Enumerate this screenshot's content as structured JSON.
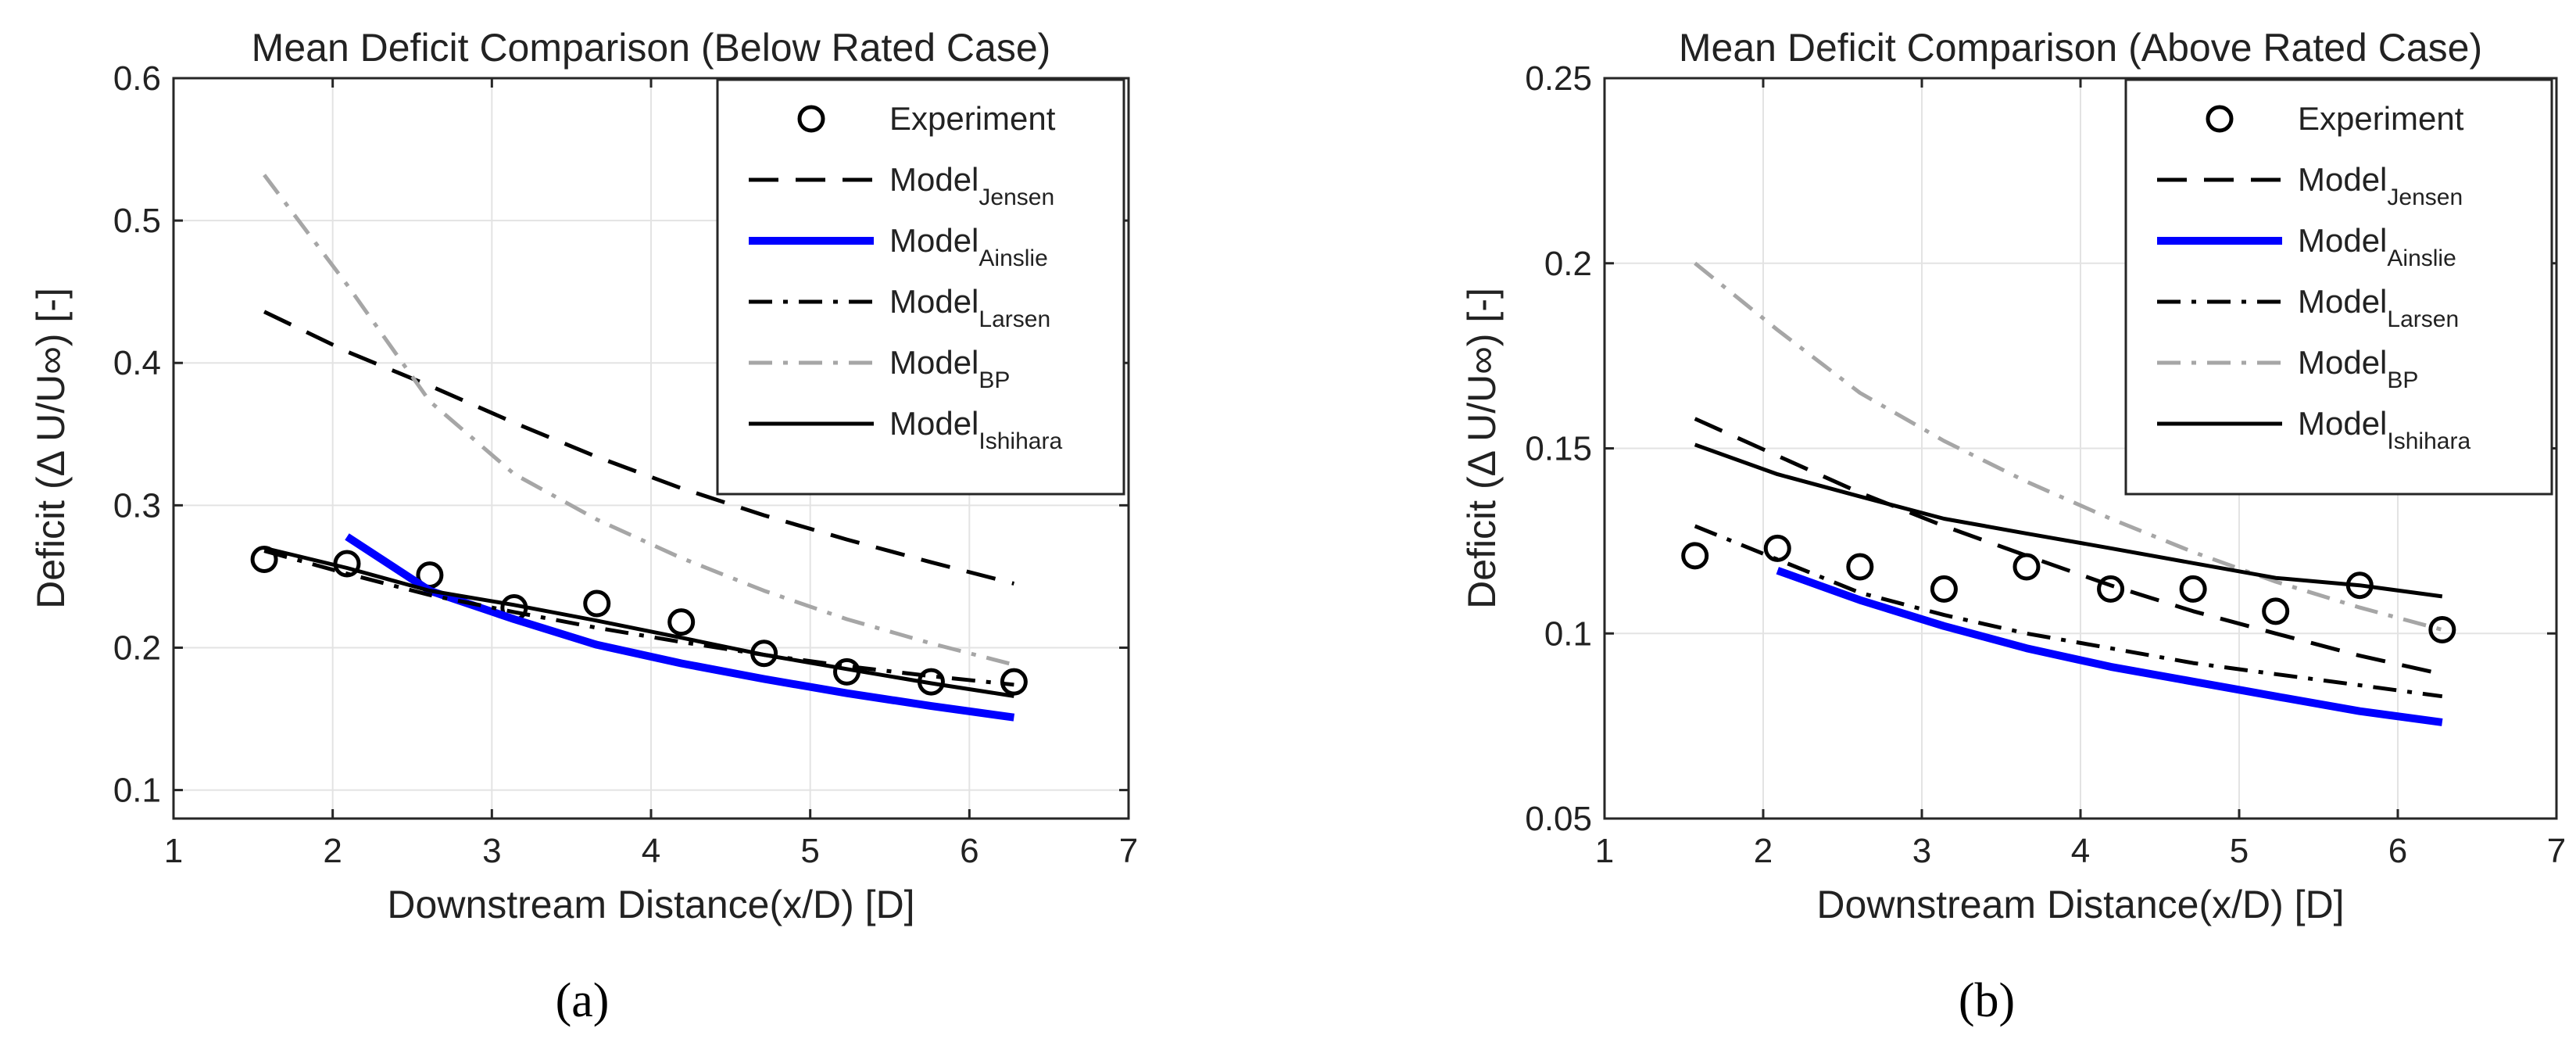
{
  "chart_data": [
    {
      "panel_label": "(a)",
      "type": "line",
      "title": "Mean Deficit Comparison (Below Rated Case)",
      "xlabel": "Downstream Distance(x/D) [D]",
      "ylabel": "Deficit (Δ U/U∞) [-]",
      "xlim": [
        1,
        7
      ],
      "ylim": [
        0.08,
        0.6
      ],
      "xticks": [
        1,
        2,
        3,
        4,
        5,
        6,
        7
      ],
      "xtick_labels": [
        "1",
        "2",
        "3",
        "4",
        "5",
        "6",
        "7"
      ],
      "yticks": [
        0.1,
        0.2,
        0.3,
        0.4,
        0.5,
        0.6
      ],
      "ytick_labels": [
        "0.1",
        "0.2",
        "0.3",
        "0.4",
        "0.5",
        "0.6"
      ],
      "grid": true,
      "legend_position": "top-right",
      "series": [
        {
          "name": "Experiment",
          "legend_main": "Experiment",
          "legend_sub": "",
          "style": "markers",
          "color": "#000000",
          "x": [
            1.57,
            2.09,
            2.61,
            3.14,
            3.66,
            4.19,
            4.71,
            5.23,
            5.76,
            6.28
          ],
          "y": [
            0.262,
            0.259,
            0.251,
            0.228,
            0.231,
            0.218,
            0.196,
            0.183,
            0.176,
            0.176
          ]
        },
        {
          "name": "Model Jensen",
          "legend_main": "Model",
          "legend_sub": "Jensen",
          "style": "dashed",
          "color": "#000000",
          "x": [
            1.57,
            2.09,
            2.61,
            3.14,
            3.66,
            4.19,
            4.71,
            5.23,
            5.76,
            6.28
          ],
          "y": [
            0.436,
            0.408,
            0.384,
            0.358,
            0.334,
            0.312,
            0.293,
            0.276,
            0.26,
            0.245
          ]
        },
        {
          "name": "Model Ainslie",
          "legend_main": "Model",
          "legend_sub": "Ainslie",
          "style": "solid-thick",
          "color": "#0000ff",
          "x": [
            2.09,
            2.61,
            3.14,
            3.66,
            4.19,
            4.71,
            5.23,
            5.76,
            6.28
          ],
          "y": [
            0.278,
            0.24,
            0.22,
            0.202,
            0.189,
            0.178,
            0.168,
            0.159,
            0.151
          ]
        },
        {
          "name": "Model Larsen",
          "legend_main": "Model",
          "legend_sub": "Larsen",
          "style": "dashdot",
          "color": "#000000",
          "x": [
            1.57,
            2.09,
            2.61,
            3.14,
            3.66,
            4.19,
            4.71,
            5.23,
            5.76,
            6.28
          ],
          "y": [
            0.268,
            0.252,
            0.237,
            0.225,
            0.214,
            0.204,
            0.195,
            0.187,
            0.18,
            0.174
          ]
        },
        {
          "name": "Model BP",
          "legend_main": "Model",
          "legend_sub": "BP",
          "style": "dashdot",
          "color": "#a6a6a6",
          "x": [
            1.57,
            2.09,
            2.61,
            3.14,
            3.66,
            4.19,
            4.71,
            5.23,
            5.76,
            6.28
          ],
          "y": [
            0.532,
            0.455,
            0.373,
            0.322,
            0.29,
            0.263,
            0.24,
            0.22,
            0.203,
            0.188
          ]
        },
        {
          "name": "Model Ishihara",
          "legend_main": "Model",
          "legend_sub": "Ishihara",
          "style": "solid",
          "color": "#000000",
          "x": [
            1.57,
            2.09,
            2.61,
            3.14,
            3.66,
            4.19,
            4.71,
            5.23,
            5.76,
            6.28
          ],
          "y": [
            0.27,
            0.256,
            0.24,
            0.23,
            0.219,
            0.207,
            0.195,
            0.185,
            0.175,
            0.166
          ]
        }
      ]
    },
    {
      "panel_label": "(b)",
      "type": "line",
      "title": "Mean Deficit Comparison (Above Rated Case)",
      "xlabel": "Downstream Distance(x/D) [D]",
      "ylabel": "Deficit (Δ U/U∞) [-]",
      "xlim": [
        1,
        7
      ],
      "ylim": [
        0.05,
        0.25
      ],
      "xticks": [
        1,
        2,
        3,
        4,
        5,
        6,
        7
      ],
      "xtick_labels": [
        "1",
        "2",
        "3",
        "4",
        "5",
        "6",
        "7"
      ],
      "yticks": [
        0.05,
        0.1,
        0.15,
        0.2,
        0.25
      ],
      "ytick_labels": [
        "0.05",
        "0.1",
        "0.15",
        "0.2",
        "0.25"
      ],
      "grid": true,
      "legend_position": "top-right",
      "series": [
        {
          "name": "Experiment",
          "legend_main": "Experiment",
          "legend_sub": "",
          "style": "markers",
          "color": "#000000",
          "x": [
            1.57,
            2.09,
            2.61,
            3.14,
            3.66,
            4.19,
            4.71,
            5.23,
            5.76,
            6.28
          ],
          "y": [
            0.121,
            0.123,
            0.118,
            0.112,
            0.118,
            0.112,
            0.112,
            0.106,
            0.113,
            0.101
          ]
        },
        {
          "name": "Model Jensen",
          "legend_main": "Model",
          "legend_sub": "Jensen",
          "style": "dashed",
          "color": "#000000",
          "x": [
            1.57,
            2.09,
            2.61,
            3.14,
            3.66,
            4.19,
            4.71,
            5.23,
            5.76,
            6.28
          ],
          "y": [
            0.158,
            0.148,
            0.138,
            0.129,
            0.121,
            0.113,
            0.106,
            0.1,
            0.094,
            0.089
          ]
        },
        {
          "name": "Model Ainslie",
          "legend_main": "Model",
          "legend_sub": "Ainslie",
          "style": "solid-thick",
          "color": "#0000ff",
          "x": [
            2.09,
            2.61,
            3.14,
            3.66,
            4.19,
            4.71,
            5.23,
            5.76,
            6.28
          ],
          "y": [
            0.117,
            0.109,
            0.102,
            0.096,
            0.091,
            0.087,
            0.083,
            0.079,
            0.076
          ]
        },
        {
          "name": "Model Larsen",
          "legend_main": "Model",
          "legend_sub": "Larsen",
          "style": "dashdot",
          "color": "#000000",
          "x": [
            1.57,
            2.09,
            2.61,
            3.14,
            3.66,
            4.19,
            4.71,
            5.23,
            5.76,
            6.28
          ],
          "y": [
            0.129,
            0.12,
            0.111,
            0.105,
            0.1,
            0.096,
            0.092,
            0.089,
            0.086,
            0.083
          ]
        },
        {
          "name": "Model BP",
          "legend_main": "Model",
          "legend_sub": "BP",
          "style": "dashdot",
          "color": "#a6a6a6",
          "x": [
            1.57,
            2.09,
            2.61,
            3.14,
            3.66,
            4.19,
            4.71,
            5.23,
            5.76,
            6.28
          ],
          "y": [
            0.2,
            0.182,
            0.165,
            0.152,
            0.141,
            0.131,
            0.122,
            0.114,
            0.107,
            0.101
          ]
        },
        {
          "name": "Model Ishihara",
          "legend_main": "Model",
          "legend_sub": "Ishihara",
          "style": "solid",
          "color": "#000000",
          "x": [
            1.57,
            2.09,
            2.61,
            3.14,
            3.66,
            4.19,
            4.71,
            5.23,
            5.76,
            6.28
          ],
          "y": [
            0.151,
            0.143,
            0.137,
            0.131,
            0.127,
            0.123,
            0.119,
            0.115,
            0.113,
            0.11
          ]
        }
      ]
    }
  ]
}
